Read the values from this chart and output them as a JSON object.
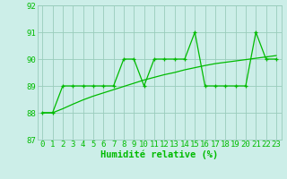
{
  "x": [
    0,
    1,
    2,
    3,
    4,
    5,
    6,
    7,
    8,
    9,
    10,
    11,
    12,
    13,
    14,
    15,
    16,
    17,
    18,
    19,
    20,
    21,
    22,
    23
  ],
  "y_main": [
    88,
    88,
    89,
    89,
    89,
    89,
    89,
    89,
    90,
    90,
    89,
    90,
    90,
    90,
    90,
    91,
    89,
    89,
    89,
    89,
    89,
    91,
    90,
    90
  ],
  "y_trend": [
    88,
    88,
    88.15,
    88.32,
    88.48,
    88.62,
    88.74,
    88.86,
    88.98,
    89.1,
    89.22,
    89.32,
    89.42,
    89.5,
    89.6,
    89.68,
    89.76,
    89.83,
    89.88,
    89.93,
    89.98,
    90.03,
    90.08,
    90.13
  ],
  "line_color": "#00bb00",
  "bg_color": "#cceee8",
  "grid_color": "#99ccbb",
  "xlabel": "Humidité relative (%)",
  "ylim": [
    87,
    92
  ],
  "xlim": [
    -0.5,
    23.5
  ],
  "yticks": [
    87,
    88,
    89,
    90,
    91,
    92
  ],
  "xticks": [
    0,
    1,
    2,
    3,
    4,
    5,
    6,
    7,
    8,
    9,
    10,
    11,
    12,
    13,
    14,
    15,
    16,
    17,
    18,
    19,
    20,
    21,
    22,
    23
  ],
  "tick_fontsize": 6.5,
  "xlabel_fontsize": 7.5
}
